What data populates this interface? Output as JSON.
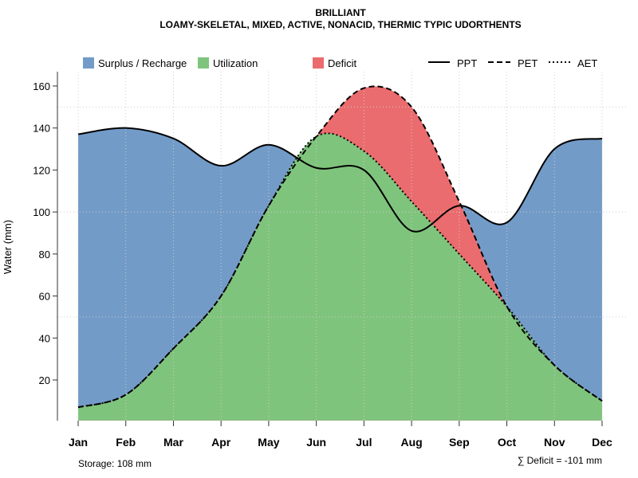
{
  "chart_data": {
    "type": "area",
    "title": "BRILLIANT",
    "subtitle": "LOAMY-SKELETAL, MIXED, ACTIVE, NONACID, THERMIC TYPIC UDORTHENTS",
    "xlabel": "",
    "ylabel": "Water (mm)",
    "ylim": [
      0,
      167
    ],
    "yticks": [
      20,
      40,
      60,
      80,
      100,
      120,
      140,
      160
    ],
    "grid": true,
    "legend_placement": "top",
    "categories": [
      "Jan",
      "Feb",
      "Mar",
      "Apr",
      "May",
      "Jun",
      "Jul",
      "Aug",
      "Sep",
      "Oct",
      "Nov",
      "Dec"
    ],
    "series": [
      {
        "name": "PPT",
        "style": "solid",
        "values": [
          137,
          140,
          135,
          122,
          132,
          121,
          120,
          91,
          103,
          95,
          130,
          135
        ]
      },
      {
        "name": "PET",
        "style": "dashed",
        "values": [
          7,
          13,
          35,
          60,
          103,
          136,
          159,
          150,
          105,
          55,
          27,
          10
        ]
      },
      {
        "name": "AET",
        "style": "dotted",
        "values": [
          7,
          13,
          35,
          60,
          103,
          136,
          129,
          105,
          80,
          55,
          27,
          10
        ]
      }
    ],
    "areas": [
      {
        "name": "Surplus / Recharge",
        "color": "#729BC8"
      },
      {
        "name": "Utilization",
        "color": "#7FC47C"
      },
      {
        "name": "Deficit",
        "color": "#EB6C6E"
      }
    ],
    "annotations": {
      "storage": "Storage: 108 mm",
      "deficit": "∑ Deficit = -101 mm"
    }
  }
}
